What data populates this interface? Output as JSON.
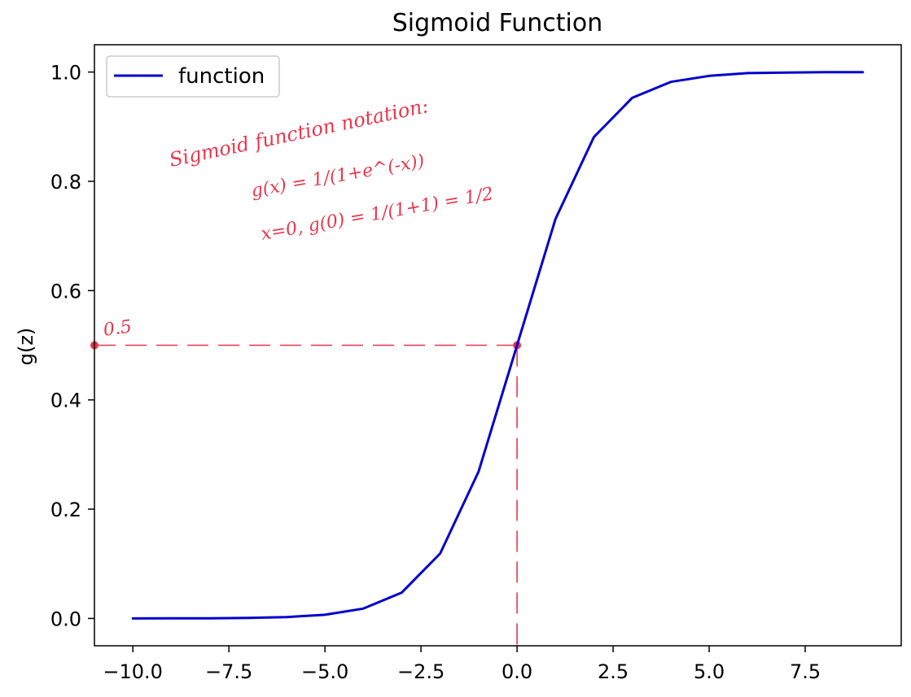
{
  "chart_data": {
    "type": "line",
    "title": "Sigmoid Function",
    "xlabel": "",
    "ylabel": "g(z)",
    "xlim": [
      -11,
      10
    ],
    "ylim": [
      -0.05,
      1.05
    ],
    "x_ticks": [
      -10,
      -7.5,
      -5,
      -2.5,
      0,
      2.5,
      5,
      7.5
    ],
    "x_tick_labels": [
      "−10.0",
      "−7.5",
      "−5.0",
      "−2.5",
      "0.0",
      "2.5",
      "5.0",
      "7.5"
    ],
    "y_ticks": [
      0,
      0.2,
      0.4,
      0.6,
      0.8,
      1.0
    ],
    "y_tick_labels": [
      "0.0",
      "0.2",
      "0.4",
      "0.6",
      "0.8",
      "1.0"
    ],
    "grid": false,
    "legend": "top-left",
    "series": [
      {
        "name": "function",
        "color": "#0000cc",
        "x": [
          -10,
          -9,
          -8,
          -7,
          -6,
          -5,
          -4,
          -3,
          -2,
          -1,
          0,
          1,
          2,
          3,
          4,
          5,
          6,
          7,
          8,
          9
        ],
        "y": [
          4.54e-05,
          0.000123,
          0.000335,
          0.000911,
          0.00247,
          0.00669,
          0.018,
          0.0474,
          0.119,
          0.269,
          0.5,
          0.731,
          0.881,
          0.953,
          0.982,
          0.993,
          0.998,
          0.999,
          0.9997,
          0.9999
        ]
      }
    ],
    "annotations": {
      "color": "#e8374d",
      "point_label": "0.5",
      "marker_point": {
        "x": 0,
        "y": 0.5
      },
      "note_lines": [
        "Sigmoid function notation:",
        "g(x) = 1/(1+e^(-x))",
        "x=0, g(0) = 1/(1+1) = 1/2"
      ]
    }
  }
}
